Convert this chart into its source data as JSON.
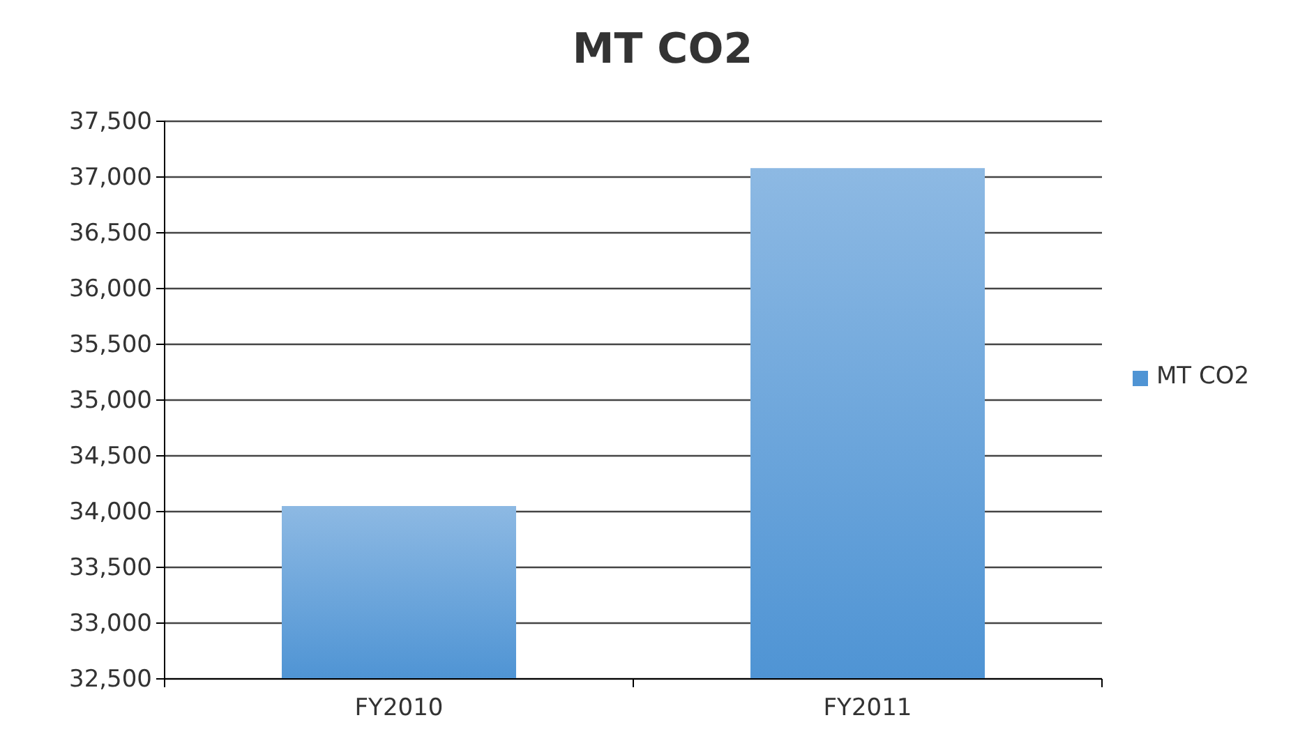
{
  "chart_data": {
    "type": "bar",
    "title": "MT CO2",
    "categories": [
      "FY2010",
      "FY2011"
    ],
    "series": [
      {
        "name": "MT CO2",
        "color": "#4f94d4",
        "values": [
          34050,
          37080
        ]
      }
    ],
    "ylim": [
      32500,
      37500
    ],
    "yticks": [
      {
        "value": 32500,
        "label": "32,500"
      },
      {
        "value": 33000,
        "label": "33,000"
      },
      {
        "value": 33500,
        "label": "33,500"
      },
      {
        "value": 34000,
        "label": "34,000"
      },
      {
        "value": 34500,
        "label": "34,500"
      },
      {
        "value": 35000,
        "label": "35,000"
      },
      {
        "value": 35500,
        "label": "35,500"
      },
      {
        "value": 36000,
        "label": "36,000"
      },
      {
        "value": 36500,
        "label": "36,500"
      },
      {
        "value": 37000,
        "label": "37,000"
      },
      {
        "value": 37500,
        "label": "37,500"
      }
    ],
    "grid": "y",
    "legend": "right"
  }
}
